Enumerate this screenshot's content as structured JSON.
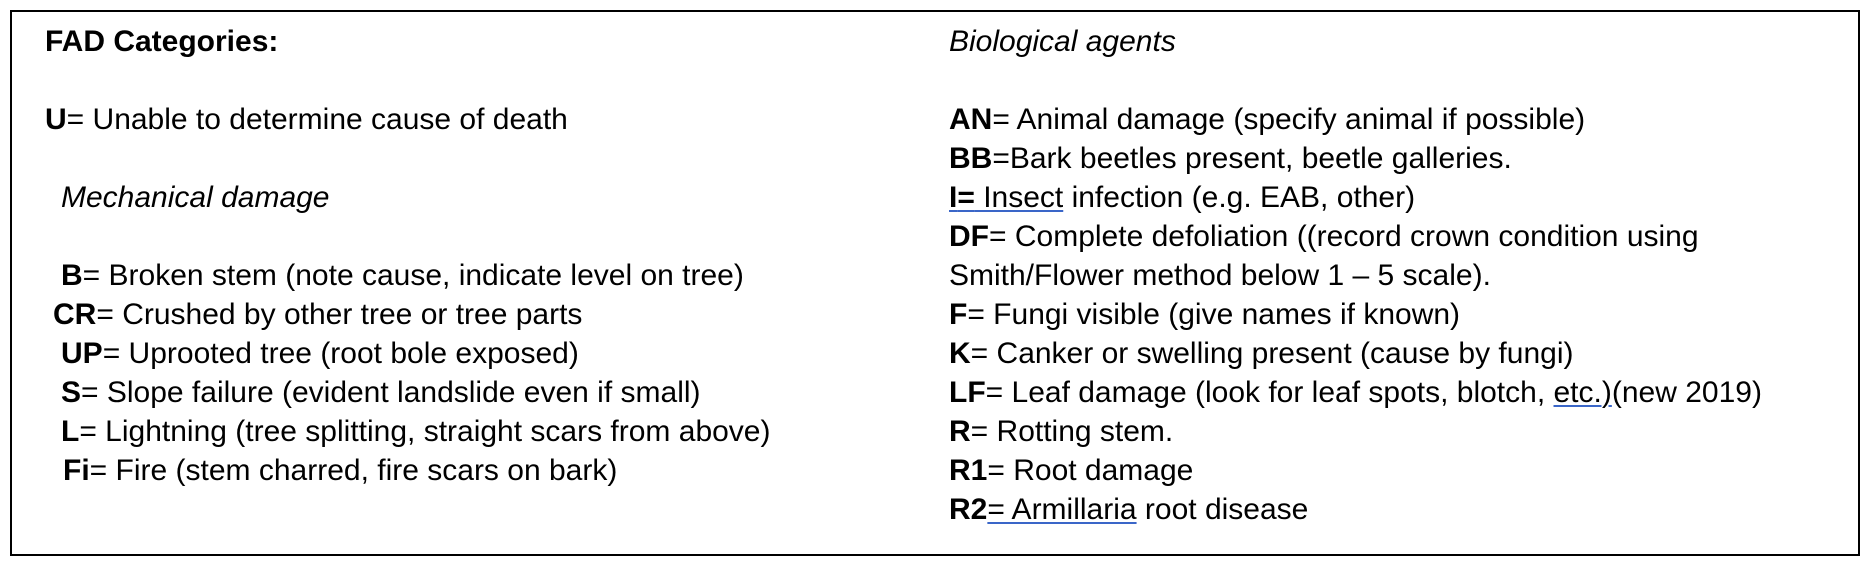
{
  "left": {
    "title": "FAD Categories:",
    "unknown": {
      "code": "U",
      "text": "= Unable to determine cause of death"
    },
    "mechanical_heading": "Mechanical damage",
    "mechanical_items": [
      {
        "code": "B",
        "text": "= Broken stem (note cause, indicate level on tree)"
      },
      {
        "code": "CR",
        "text": "= Crushed by other tree or tree parts"
      },
      {
        "code": "UP",
        "text": "= Uprooted tree (root bole exposed)"
      },
      {
        "code": "S",
        "text": "= Slope failure (evident landslide even if small)"
      },
      {
        "code": "L",
        "text": "= Lightning (tree splitting, straight scars from above)"
      },
      {
        "code": "Fi",
        "text": "= Fire (stem charred, fire scars on bark)"
      }
    ]
  },
  "right": {
    "heading": "Biological agents",
    "items": {
      "an": {
        "code": "AN",
        "text": "= Animal damage (specify animal if possible)"
      },
      "bb": {
        "code": "BB",
        "text": "=Bark beetles present, beetle galleries."
      },
      "i": {
        "code": "I",
        "eq": "=",
        "underlined": " Insect",
        "text": " infection (e.g. EAB, other)"
      },
      "df": {
        "code": "DF",
        "text": "= Complete defoliation ((record crown condition using Smith/Flower method below 1 – 5 scale)."
      },
      "f": {
        "code": "F",
        "text": "= Fungi visible (give names if known)"
      },
      "k": {
        "code": "K",
        "text": "= Canker or swelling present (cause by fungi)"
      },
      "lf": {
        "code": "LF",
        "text_before": "= Leaf damage (look for leaf spots, blotch, ",
        "underlined": "etc.)",
        "text_after": "(new 2019)"
      },
      "r": {
        "code": "R",
        "text": "= Rotting stem."
      },
      "r1": {
        "code": "R1",
        "text": "= Root damage"
      },
      "r2": {
        "code": "R2",
        "underlined": "=  Armillaria",
        "text": " root disease"
      }
    }
  },
  "colors": {
    "text": "#000000",
    "border": "#000000",
    "underline": "#3a66c8"
  }
}
